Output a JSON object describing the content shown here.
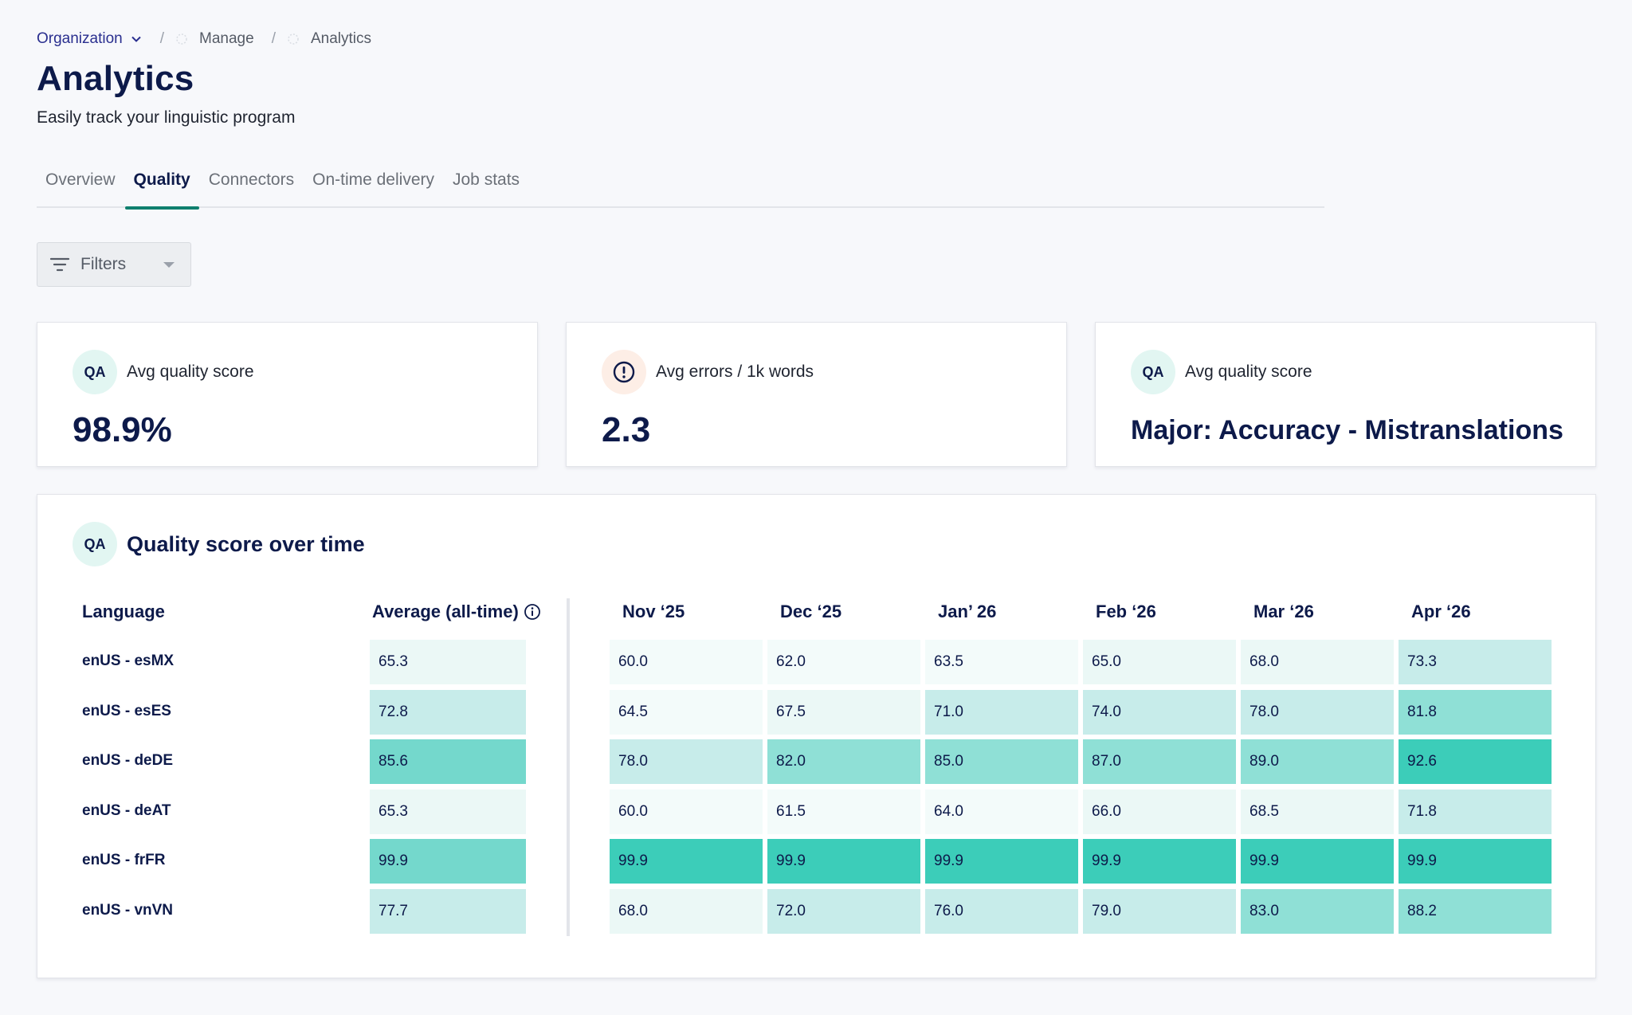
{
  "breadcrumb": {
    "org": "Organization",
    "manage": "Manage",
    "current": "Analytics",
    "separator": "/"
  },
  "page": {
    "title": "Analytics",
    "subtitle": "Easily track your linguistic program"
  },
  "tabs": [
    {
      "label": "Overview"
    },
    {
      "label": "Quality",
      "active": true
    },
    {
      "label": "Connectors"
    },
    {
      "label": "On-time delivery"
    },
    {
      "label": "Job stats"
    }
  ],
  "filters": {
    "label": "Filters"
  },
  "cards": [
    {
      "badge": "QA",
      "icon": "qa-badge-icon",
      "label": "Avg quality score",
      "value": "98.9%"
    },
    {
      "badge": "",
      "icon": "alert-circle-icon",
      "label": "Avg errors / 1k words",
      "value": "2.3"
    },
    {
      "badge": "QA",
      "icon": "qa-badge-icon",
      "label": "Avg quality score",
      "value": "Major: Accuracy - Mistranslations"
    }
  ],
  "quality": {
    "badge": "QA",
    "title": "Quality score over time",
    "headers": {
      "language": "Language",
      "average": "Average (all-time)"
    },
    "months": [
      "Nov ‘25",
      "Dec ‘25",
      "Jan’ 26",
      "Feb ‘26",
      "Mar ‘26",
      "Apr ‘26"
    ],
    "rows": [
      {
        "language": "enUS - esMX",
        "average": "65.3",
        "values": [
          "60.0",
          "62.0",
          "63.5",
          "65.0",
          "68.0",
          "73.3"
        ]
      },
      {
        "language": "enUS - esES",
        "average": "72.8",
        "values": [
          "64.5",
          "67.5",
          "71.0",
          "74.0",
          "78.0",
          "81.8"
        ]
      },
      {
        "language": "enUS - deDE",
        "average": "85.6",
        "values": [
          "78.0",
          "82.0",
          "85.0",
          "87.0",
          "89.0",
          "92.6"
        ]
      },
      {
        "language": "enUS - deAT",
        "average": "65.3",
        "values": [
          "60.0",
          "61.5",
          "64.0",
          "66.0",
          "68.5",
          "71.8"
        ]
      },
      {
        "language": "enUS - frFR",
        "average": "99.9",
        "values": [
          "99.9",
          "99.9",
          "99.9",
          "99.9",
          "99.9",
          "99.9"
        ]
      },
      {
        "language": "enUS - vnVN",
        "average": "77.7",
        "values": [
          "68.0",
          "72.0",
          "76.0",
          "79.0",
          "83.0",
          "88.2"
        ]
      }
    ]
  },
  "colors": {
    "accent": "#0f7f6e",
    "scale": [
      "#f3fbfa",
      "#ebf8f6",
      "#c7ecea",
      "#8fe0d6",
      "#74d8cc",
      "#3ccdb9"
    ]
  }
}
